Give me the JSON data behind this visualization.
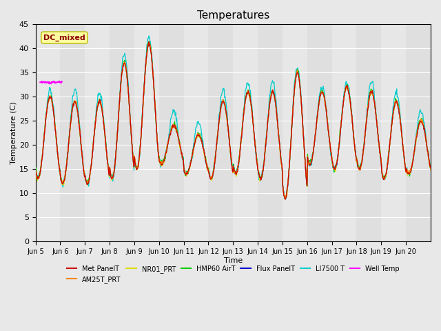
{
  "title": "Temperatures",
  "xlabel": "Time",
  "ylabel": "Temperature (C)",
  "ylim": [
    0,
    45
  ],
  "yticks": [
    0,
    5,
    10,
    15,
    20,
    25,
    30,
    35,
    40,
    45
  ],
  "x_labels": [
    "Jun 5",
    "Jun 6",
    "Jun 7",
    "Jun 8",
    "Jun 9",
    "Jun 10",
    "Jun 11",
    "Jun 12",
    "Jun 13",
    "Jun 14",
    "Jun 15",
    "Jun 16",
    "Jun 17",
    "Jun 18",
    "Jun 19",
    "Jun 20"
  ],
  "bg_color": "#e8e8e8",
  "plot_bg": "#f0f0f0",
  "annotation_text": "DC_mixed",
  "annotation_color": "#8B0000",
  "annotation_bg": "#ffffa0",
  "annotation_border": "#b8b800",
  "legend_entries": [
    {
      "label": "Met PanelT",
      "color": "#cc0000"
    },
    {
      "label": "AM25T_PRT",
      "color": "#ff8800"
    },
    {
      "label": "NR01_PRT",
      "color": "#dddd00"
    },
    {
      "label": "HMP60 AirT",
      "color": "#00cc00"
    },
    {
      "label": "Flux PanelT",
      "color": "#0000cc"
    },
    {
      "label": "LI7500 T",
      "color": "#00cccc"
    },
    {
      "label": "Well Temp",
      "color": "#ff00ff"
    }
  ],
  "n_days": 16,
  "seed": 42,
  "day_maxes": [
    30,
    29,
    29,
    37,
    41,
    24,
    22,
    29,
    31,
    31,
    35,
    31,
    32,
    31,
    29,
    25
  ],
  "day_mins": [
    13,
    12,
    12,
    13,
    15,
    16,
    14,
    13,
    14,
    13,
    9,
    16,
    15,
    15,
    13,
    14
  ],
  "pts_per_day": 48
}
